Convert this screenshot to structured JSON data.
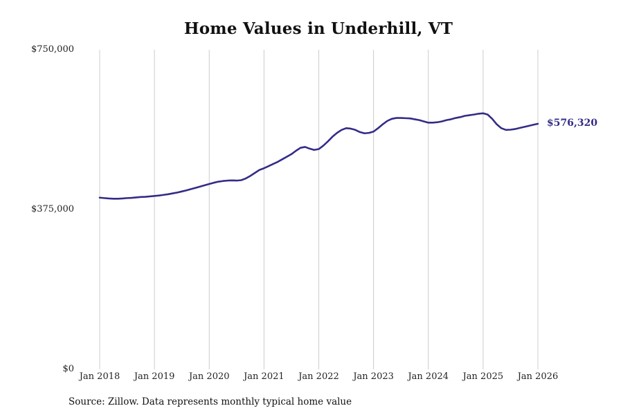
{
  "chart": {
    "title": "Home Values in Underhill, VT",
    "source": "Source: Zillow. Data represents monthly typical home value",
    "latest_value_label": "$576,320",
    "line_color": "#332c87",
    "grid_color": "#cccccc"
  },
  "chart_data": {
    "type": "line",
    "title": "Home Values in Underhill, VT",
    "frequency": "monthly",
    "x_start": "Jan 2018",
    "x_end": "Jan 2026",
    "x_tick_labels": [
      "Jan 2018",
      "Jan 2019",
      "Jan 2020",
      "Jan 2021",
      "Jan 2022",
      "Jan 2023",
      "Jan 2024",
      "Jan 2025",
      "Jan 2026"
    ],
    "y_ticks": [
      {
        "value": 750000,
        "label": "$750,000"
      },
      {
        "value": 375000,
        "label": "$375,000"
      },
      {
        "value": 0,
        "label": "$0"
      }
    ],
    "ylim": [
      0,
      750000
    ],
    "grid": "vertical-only",
    "legend": "none",
    "latest_value": 576320,
    "annotations": [
      {
        "text": "$576,320",
        "position": "end-of-line"
      }
    ],
    "series": [
      {
        "name": "Typical home value",
        "values": [
          403000,
          402000,
          401000,
          400500,
          400500,
          401000,
          402000,
          402500,
          403500,
          404500,
          405000,
          406000,
          407000,
          408000,
          409500,
          411000,
          413000,
          415000,
          417500,
          420000,
          423000,
          426000,
          429000,
          432000,
          435000,
          438000,
          440500,
          442000,
          443000,
          443500,
          443000,
          444000,
          448000,
          454000,
          461000,
          468000,
          472000,
          477000,
          482000,
          487000,
          493000,
          499000,
          505000,
          513000,
          520000,
          522000,
          518000,
          515000,
          517000,
          525000,
          535000,
          546000,
          555000,
          562000,
          566000,
          565000,
          562000,
          557000,
          554000,
          555000,
          558000,
          566000,
          575000,
          583000,
          588000,
          590000,
          590000,
          589500,
          589000,
          587000,
          585000,
          582000,
          579000,
          579000,
          580000,
          582000,
          585000,
          587000,
          590000,
          592000,
          595000,
          596500,
          598000,
          600000,
          601000,
          598000,
          588000,
          575000,
          566000,
          562000,
          562500,
          564000,
          566500,
          569000,
          571500,
          574000,
          576320
        ]
      }
    ]
  }
}
